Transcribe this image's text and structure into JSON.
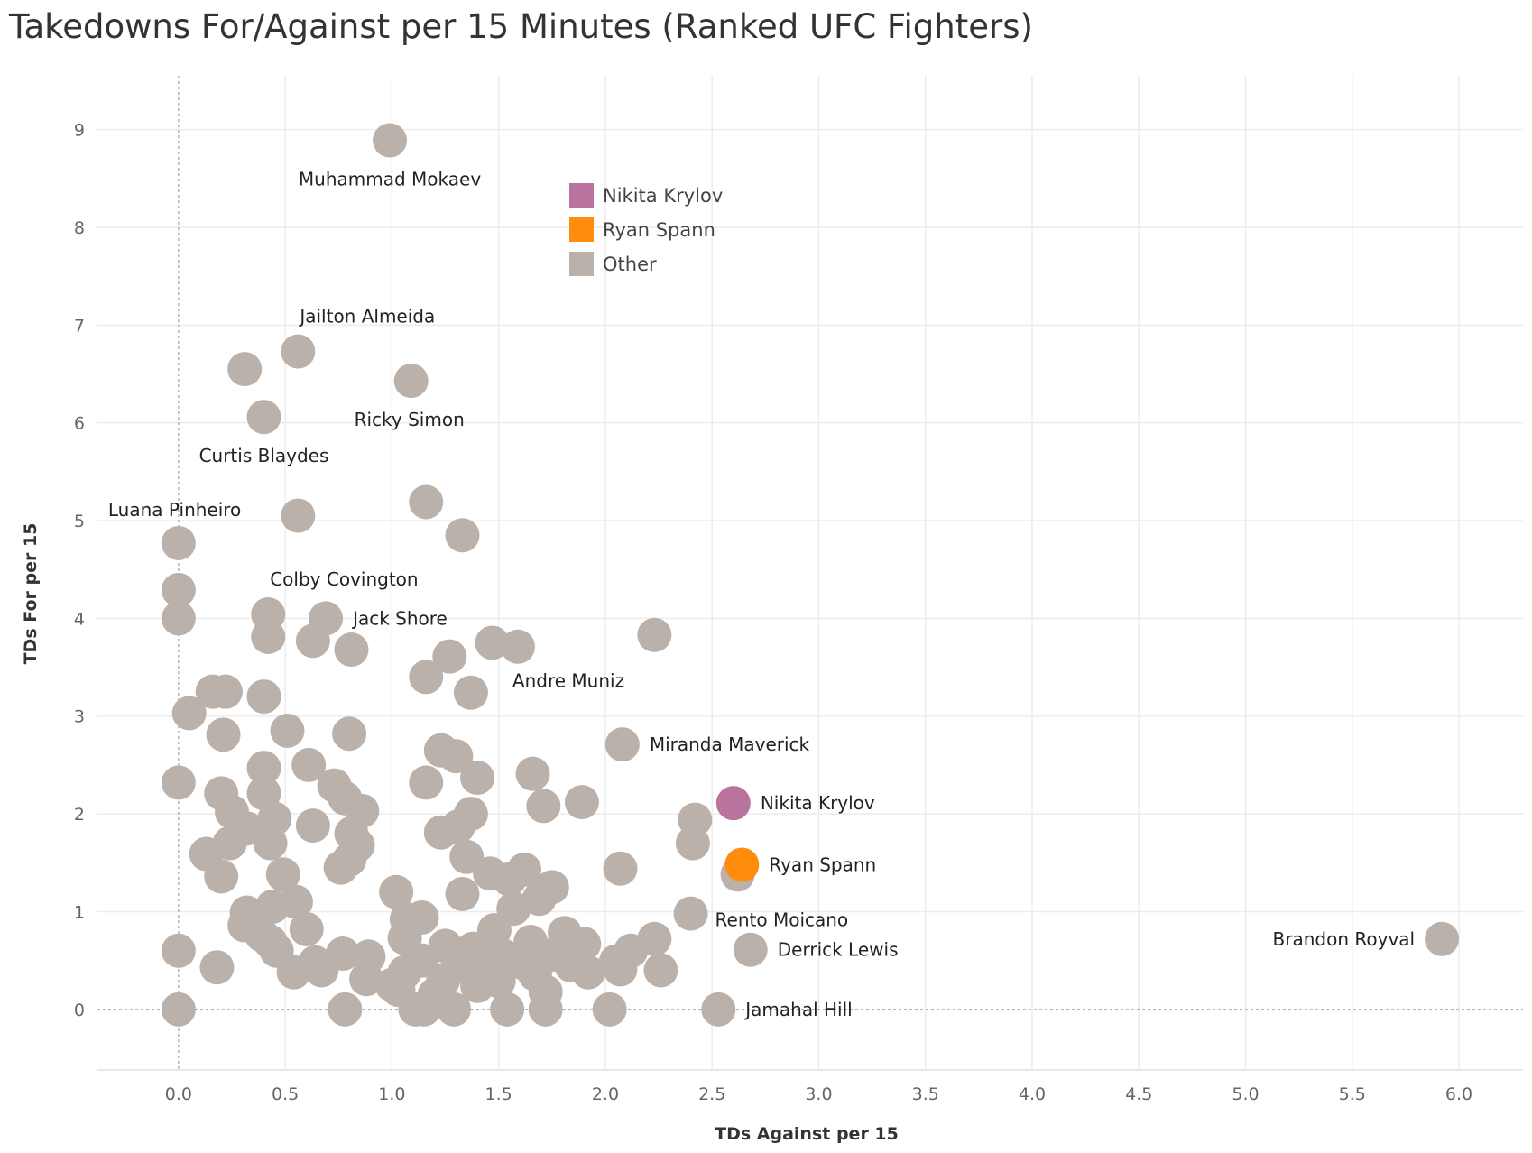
{
  "chart_data": {
    "type": "scatter",
    "title": "Takedowns For/Against per 15 Minutes (Ranked UFC Fighters)",
    "xlabel": "TDs Against per 15",
    "ylabel": "TDs For per 15",
    "xlim": [
      -0.38,
      6.3
    ],
    "ylim": [
      -0.62,
      9.55
    ],
    "xticks": [
      "0.0",
      "0.5",
      "1.0",
      "1.5",
      "2.0",
      "2.5",
      "3.0",
      "3.5",
      "4.0",
      "4.5",
      "5.0",
      "5.5",
      "6.0"
    ],
    "xtick_values": [
      0,
      0.5,
      1,
      1.5,
      2,
      2.5,
      3,
      3.5,
      4,
      4.5,
      5,
      5.5,
      6
    ],
    "yticks": [
      "0",
      "1",
      "2",
      "3",
      "4",
      "5",
      "6",
      "7",
      "8",
      "9"
    ],
    "ytick_values": [
      0,
      1,
      2,
      3,
      4,
      5,
      6,
      7,
      8,
      9
    ],
    "grid": true,
    "legend_position": "top-center",
    "legend": [
      {
        "name": "Nikita Krylov",
        "color": "#b8739f"
      },
      {
        "name": "Ryan Spann",
        "color": "#ff8c0a"
      },
      {
        "name": "Other",
        "color": "#bbb1ab"
      }
    ],
    "colors": {
      "Nikita Krylov": "#b8739f",
      "Ryan Spann": "#ff8c0a",
      "Other": "#bbb1ab"
    },
    "points": [
      {
        "x": 0.99,
        "y": 8.89,
        "group": "Other",
        "label": "Muhammad Mokaev",
        "label_pos": "below"
      },
      {
        "x": 0.56,
        "y": 6.73,
        "group": "Other",
        "label": "Jailton Almeida",
        "label_pos": "above-right"
      },
      {
        "x": 1.09,
        "y": 6.43,
        "group": "Other",
        "label": "Ricky Simon",
        "label_pos": "below"
      },
      {
        "x": 0.31,
        "y": 6.55,
        "group": "Other"
      },
      {
        "x": 0.4,
        "y": 6.06,
        "group": "Other",
        "label": "Curtis Blaydes",
        "label_pos": "below"
      },
      {
        "x": 0.56,
        "y": 5.05,
        "group": "Other"
      },
      {
        "x": 1.16,
        "y": 5.19,
        "group": "Other"
      },
      {
        "x": 1.33,
        "y": 4.85,
        "group": "Other"
      },
      {
        "x": 0.0,
        "y": 4.77,
        "group": "Other",
        "label": "Luana Pinheiro",
        "label_pos": "above"
      },
      {
        "x": 0.0,
        "y": 4.29,
        "group": "Other"
      },
      {
        "x": 0.0,
        "y": 4.0,
        "group": "Other"
      },
      {
        "x": 0.42,
        "y": 4.04,
        "group": "Other",
        "label": "Colby Covington",
        "label_pos": "above-right"
      },
      {
        "x": 0.69,
        "y": 4.0,
        "group": "Other",
        "label": "Jack Shore",
        "label_pos": "right"
      },
      {
        "x": 0.42,
        "y": 3.81,
        "group": "Other"
      },
      {
        "x": 0.63,
        "y": 3.77,
        "group": "Other"
      },
      {
        "x": 0.81,
        "y": 3.68,
        "group": "Other"
      },
      {
        "x": 1.47,
        "y": 3.75,
        "group": "Other"
      },
      {
        "x": 1.59,
        "y": 3.71,
        "group": "Other"
      },
      {
        "x": 2.23,
        "y": 3.83,
        "group": "Other"
      },
      {
        "x": 1.27,
        "y": 3.61,
        "group": "Other"
      },
      {
        "x": 1.16,
        "y": 3.4,
        "group": "Other"
      },
      {
        "x": 1.37,
        "y": 3.24,
        "group": "Other",
        "label": "Andre Muniz",
        "label_pos": "below-right"
      },
      {
        "x": 0.16,
        "y": 3.25,
        "group": "Other"
      },
      {
        "x": 0.22,
        "y": 3.25,
        "group": "Other"
      },
      {
        "x": 0.4,
        "y": 3.2,
        "group": "Other"
      },
      {
        "x": 0.05,
        "y": 3.03,
        "group": "Other"
      },
      {
        "x": 0.51,
        "y": 2.85,
        "group": "Other"
      },
      {
        "x": 0.21,
        "y": 2.81,
        "group": "Other"
      },
      {
        "x": 0.8,
        "y": 2.82,
        "group": "Other"
      },
      {
        "x": 2.08,
        "y": 2.71,
        "group": "Other",
        "label": "Miranda Maverick",
        "label_pos": "right"
      },
      {
        "x": 1.23,
        "y": 2.65,
        "group": "Other"
      },
      {
        "x": 1.3,
        "y": 2.59,
        "group": "Other"
      },
      {
        "x": 0.61,
        "y": 2.5,
        "group": "Other"
      },
      {
        "x": 0.4,
        "y": 2.47,
        "group": "Other"
      },
      {
        "x": 1.4,
        "y": 2.37,
        "group": "Other"
      },
      {
        "x": 1.66,
        "y": 2.41,
        "group": "Other"
      },
      {
        "x": 0.0,
        "y": 2.32,
        "group": "Other"
      },
      {
        "x": 1.16,
        "y": 2.32,
        "group": "Other"
      },
      {
        "x": 0.73,
        "y": 2.29,
        "group": "Other"
      },
      {
        "x": 0.2,
        "y": 2.21,
        "group": "Other"
      },
      {
        "x": 0.4,
        "y": 2.21,
        "group": "Other"
      },
      {
        "x": 0.78,
        "y": 2.16,
        "group": "Other"
      },
      {
        "x": 1.89,
        "y": 2.12,
        "group": "Other"
      },
      {
        "x": 1.71,
        "y": 2.08,
        "group": "Other"
      },
      {
        "x": 0.86,
        "y": 2.03,
        "group": "Other"
      },
      {
        "x": 0.25,
        "y": 2.02,
        "group": "Other"
      },
      {
        "x": 1.37,
        "y": 2.0,
        "group": "Other"
      },
      {
        "x": 2.42,
        "y": 1.94,
        "group": "Other"
      },
      {
        "x": 0.45,
        "y": 1.95,
        "group": "Other"
      },
      {
        "x": 0.63,
        "y": 1.88,
        "group": "Other"
      },
      {
        "x": 0.32,
        "y": 1.85,
        "group": "Other"
      },
      {
        "x": 1.23,
        "y": 1.81,
        "group": "Other"
      },
      {
        "x": 1.31,
        "y": 1.87,
        "group": "Other"
      },
      {
        "x": 0.81,
        "y": 1.8,
        "group": "Other"
      },
      {
        "x": 2.41,
        "y": 1.7,
        "group": "Other"
      },
      {
        "x": 0.43,
        "y": 1.7,
        "group": "Other"
      },
      {
        "x": 0.24,
        "y": 1.7,
        "group": "Other"
      },
      {
        "x": 0.84,
        "y": 1.68,
        "group": "Other"
      },
      {
        "x": 0.13,
        "y": 1.59,
        "group": "Other"
      },
      {
        "x": 1.35,
        "y": 1.56,
        "group": "Other"
      },
      {
        "x": 0.8,
        "y": 1.53,
        "group": "Other"
      },
      {
        "x": 0.76,
        "y": 1.45,
        "group": "Other"
      },
      {
        "x": 2.07,
        "y": 1.44,
        "group": "Other"
      },
      {
        "x": 1.62,
        "y": 1.43,
        "group": "Other"
      },
      {
        "x": 1.46,
        "y": 1.39,
        "group": "Other"
      },
      {
        "x": 0.49,
        "y": 1.38,
        "group": "Other"
      },
      {
        "x": 0.2,
        "y": 1.36,
        "group": "Other"
      },
      {
        "x": 2.62,
        "y": 1.38,
        "group": "Other"
      },
      {
        "x": 1.55,
        "y": 1.33,
        "group": "Other"
      },
      {
        "x": 1.75,
        "y": 1.25,
        "group": "Other"
      },
      {
        "x": 1.02,
        "y": 1.2,
        "group": "Other"
      },
      {
        "x": 1.33,
        "y": 1.18,
        "group": "Other"
      },
      {
        "x": 1.69,
        "y": 1.13,
        "group": "Other"
      },
      {
        "x": 0.55,
        "y": 1.1,
        "group": "Other"
      },
      {
        "x": 0.44,
        "y": 1.05,
        "group": "Other"
      },
      {
        "x": 1.57,
        "y": 1.03,
        "group": "Other"
      },
      {
        "x": 0.32,
        "y": 0.99,
        "group": "Other"
      },
      {
        "x": 2.4,
        "y": 0.98,
        "group": "Other",
        "label": "Rento Moicano",
        "label_pos": "below-right"
      },
      {
        "x": 1.14,
        "y": 0.94,
        "group": "Other"
      },
      {
        "x": 1.07,
        "y": 0.92,
        "group": "Other"
      },
      {
        "x": 0.31,
        "y": 0.86,
        "group": "Other"
      },
      {
        "x": 0.6,
        "y": 0.82,
        "group": "Other"
      },
      {
        "x": 1.48,
        "y": 0.81,
        "group": "Other"
      },
      {
        "x": 0.39,
        "y": 0.76,
        "group": "Other"
      },
      {
        "x": 1.81,
        "y": 0.78,
        "group": "Other"
      },
      {
        "x": 1.06,
        "y": 0.73,
        "group": "Other"
      },
      {
        "x": 2.23,
        "y": 0.72,
        "group": "Other"
      },
      {
        "x": 0.43,
        "y": 0.69,
        "group": "Other"
      },
      {
        "x": 1.65,
        "y": 0.69,
        "group": "Other"
      },
      {
        "x": 1.9,
        "y": 0.67,
        "group": "Other"
      },
      {
        "x": 1.25,
        "y": 0.65,
        "group": "Other"
      },
      {
        "x": 0.46,
        "y": 0.6,
        "group": "Other"
      },
      {
        "x": 1.38,
        "y": 0.62,
        "group": "Other"
      },
      {
        "x": 2.68,
        "y": 0.61,
        "group": "Other",
        "label": "Derrick Lewis",
        "label_pos": "right"
      },
      {
        "x": 0.0,
        "y": 0.6,
        "group": "Other"
      },
      {
        "x": 0.77,
        "y": 0.57,
        "group": "Other"
      },
      {
        "x": 2.12,
        "y": 0.6,
        "group": "Other"
      },
      {
        "x": 5.92,
        "y": 0.72,
        "group": "Other",
        "label": "Brandon Royval",
        "label_pos": "left"
      },
      {
        "x": 0.89,
        "y": 0.54,
        "group": "Other"
      },
      {
        "x": 1.52,
        "y": 0.55,
        "group": "Other"
      },
      {
        "x": 1.73,
        "y": 0.55,
        "group": "Other"
      },
      {
        "x": 0.64,
        "y": 0.48,
        "group": "Other"
      },
      {
        "x": 1.14,
        "y": 0.5,
        "group": "Other"
      },
      {
        "x": 2.05,
        "y": 0.49,
        "group": "Other"
      },
      {
        "x": 1.62,
        "y": 0.47,
        "group": "Other"
      },
      {
        "x": 0.18,
        "y": 0.43,
        "group": "Other"
      },
      {
        "x": 1.31,
        "y": 0.44,
        "group": "Other"
      },
      {
        "x": 1.84,
        "y": 0.45,
        "group": "Other"
      },
      {
        "x": 2.07,
        "y": 0.41,
        "group": "Other"
      },
      {
        "x": 2.26,
        "y": 0.4,
        "group": "Other"
      },
      {
        "x": 0.67,
        "y": 0.4,
        "group": "Other"
      },
      {
        "x": 0.54,
        "y": 0.38,
        "group": "Other"
      },
      {
        "x": 1.06,
        "y": 0.38,
        "group": "Other"
      },
      {
        "x": 1.45,
        "y": 0.37,
        "group": "Other"
      },
      {
        "x": 1.92,
        "y": 0.38,
        "group": "Other"
      },
      {
        "x": 1.67,
        "y": 0.36,
        "group": "Other"
      },
      {
        "x": 0.88,
        "y": 0.31,
        "group": "Other"
      },
      {
        "x": 1.24,
        "y": 0.3,
        "group": "Other"
      },
      {
        "x": 1.5,
        "y": 0.29,
        "group": "Other"
      },
      {
        "x": 1.0,
        "y": 0.25,
        "group": "Other"
      },
      {
        "x": 1.4,
        "y": 0.24,
        "group": "Other"
      },
      {
        "x": 1.72,
        "y": 0.18,
        "group": "Other"
      },
      {
        "x": 1.03,
        "y": 0.2,
        "group": "Other"
      },
      {
        "x": 1.2,
        "y": 0.15,
        "group": "Other"
      },
      {
        "x": 0.0,
        "y": 0.0,
        "group": "Other"
      },
      {
        "x": 0.78,
        "y": 0.0,
        "group": "Other"
      },
      {
        "x": 1.11,
        "y": 0.0,
        "group": "Other"
      },
      {
        "x": 1.15,
        "y": 0.0,
        "group": "Other"
      },
      {
        "x": 1.29,
        "y": 0.0,
        "group": "Other"
      },
      {
        "x": 1.54,
        "y": 0.0,
        "group": "Other"
      },
      {
        "x": 1.72,
        "y": 0.0,
        "group": "Other"
      },
      {
        "x": 2.02,
        "y": 0.0,
        "group": "Other"
      },
      {
        "x": 2.53,
        "y": 0.0,
        "group": "Other",
        "label": "Jamahal Hill",
        "label_pos": "right"
      },
      {
        "x": 2.6,
        "y": 2.11,
        "group": "Nikita Krylov",
        "label": "Nikita Krylov",
        "label_pos": "right"
      },
      {
        "x": 2.64,
        "y": 1.48,
        "group": "Ryan Spann",
        "label": "Ryan Spann",
        "label_pos": "right"
      }
    ]
  }
}
